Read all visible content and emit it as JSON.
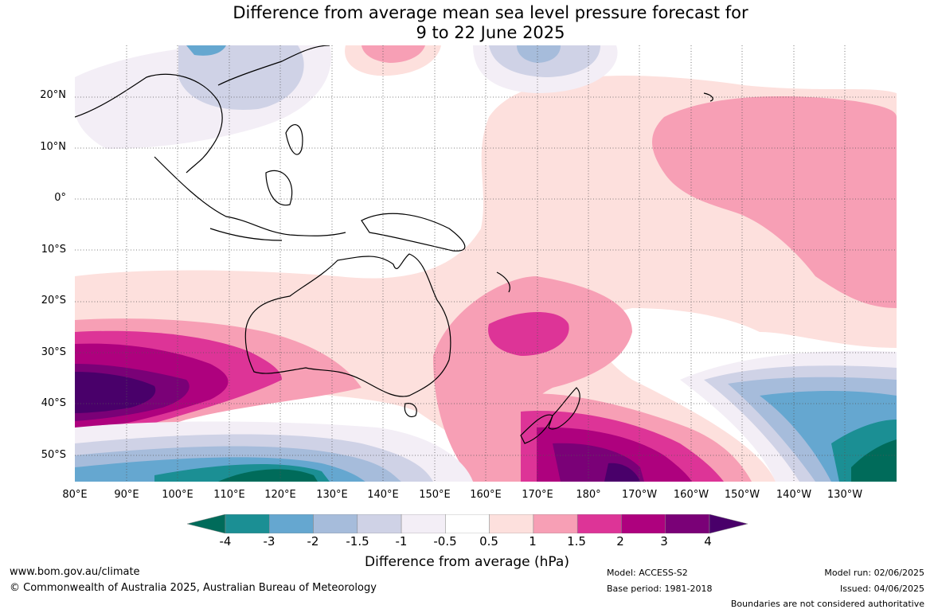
{
  "title_line1": "Difference from average mean sea level pressure forecast for",
  "title_line2": "9 to 22 June 2025",
  "lat_ticks": [
    "20°N",
    "10°N",
    "0°",
    "10°S",
    "20°S",
    "30°S",
    "40°S",
    "50°S"
  ],
  "lon_ticks": [
    "80°E",
    "90°E",
    "100°E",
    "110°E",
    "120°E",
    "130°E",
    "140°E",
    "150°E",
    "160°E",
    "170°E",
    "180°",
    "170°W",
    "160°W",
    "150°W",
    "140°W",
    "130°W"
  ],
  "colorbar": {
    "labels": [
      "-4",
      "-3",
      "-2",
      "-1.5",
      "-1",
      "-0.5",
      "0.5",
      "1",
      "1.5",
      "2",
      "3",
      "4"
    ],
    "colors": [
      "#006b5a",
      "#1b8f94",
      "#65a7d0",
      "#a6bcdb",
      "#cfd2e6",
      "#f3eef6",
      "#ffffff",
      "#fde0dd",
      "#f79fb5",
      "#dd3497",
      "#ae017e",
      "#7a0177",
      "#49006a"
    ],
    "title": "Difference from average (hPa)"
  },
  "footer": {
    "website": "www.bom.gov.au/climate",
    "copyright": "© Commonwealth of Australia 2025, Australian Bureau of Meteorology",
    "model": "Model: ACCESS-S2",
    "base_period": "Base period: 1981-2018",
    "model_run": "Model run: 02/06/2025",
    "issued": "Issued: 04/06/2025",
    "boundaries": "Boundaries are not considered authoritative"
  }
}
